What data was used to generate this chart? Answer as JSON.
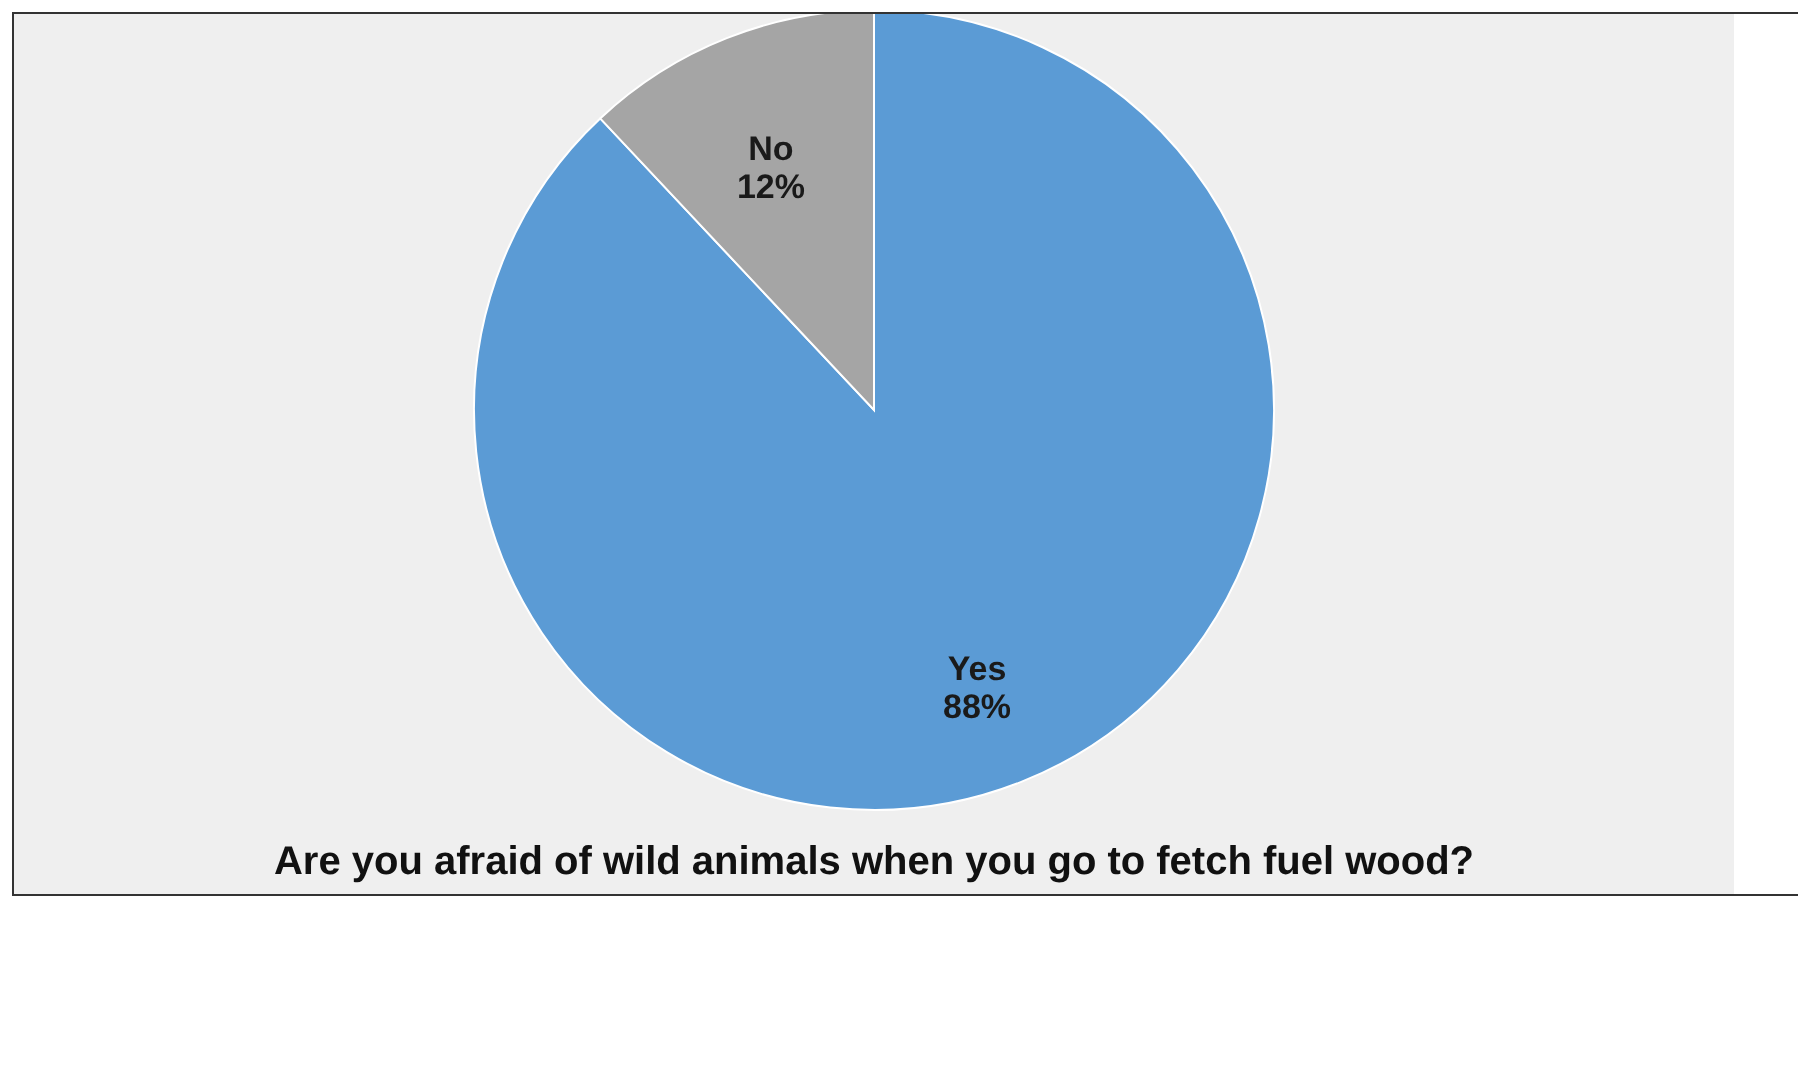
{
  "chart_data": {
    "type": "pie",
    "title": "Are you afraid of wild animals when you go to fetch fuel wood?",
    "categories": [
      "Yes",
      "No"
    ],
    "values": [
      88,
      12
    ],
    "colors": [
      "#5b9bd5",
      "#a5a5a5"
    ],
    "value_labels": [
      "88%",
      "12%"
    ],
    "legend": false
  }
}
